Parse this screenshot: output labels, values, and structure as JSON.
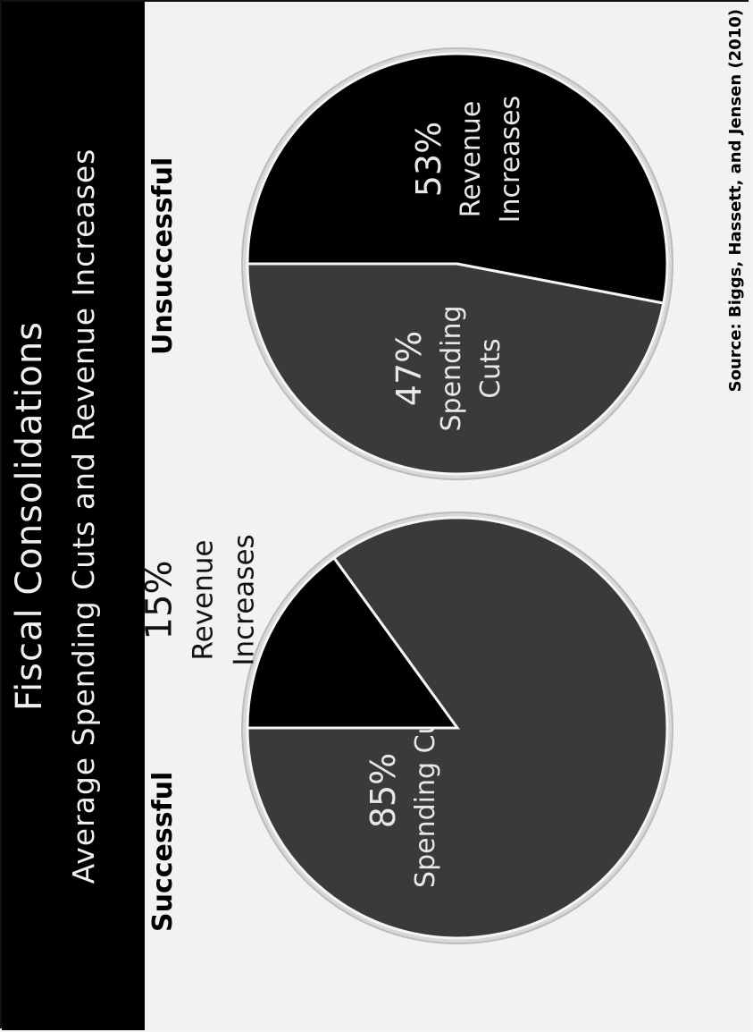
{
  "header": {
    "title": "Fiscal Consolidations",
    "subtitle": "Average Spending Cuts and Revenue Increases"
  },
  "source": "Source: Biggs, Hassett, and Jensen (2010)",
  "colors": {
    "spending_cuts": "#3a3a3a",
    "revenue_increases": "#000000",
    "slice_border": "#f5f5f5",
    "header_bg": "#000000"
  },
  "chart_data": [
    {
      "type": "pie",
      "title": "Successful",
      "slices": [
        {
          "value": 85,
          "pct_label": "85%",
          "name_label": "Spending Cuts",
          "name_lines": [
            "Spending Cuts"
          ],
          "label_placement": "inside",
          "color": "#3a3a3a"
        },
        {
          "value": 15,
          "pct_label": "15%",
          "name_label": "Revenue Increases",
          "name_lines": [
            "Revenue",
            "Increases"
          ],
          "label_placement": "outside",
          "color": "#000000"
        }
      ]
    },
    {
      "type": "pie",
      "title": "Unsuccessful",
      "slices": [
        {
          "value": 47,
          "pct_label": "47%",
          "name_label": "Spending Cuts",
          "name_lines": [
            "Spending",
            "Cuts"
          ],
          "label_placement": "inside",
          "color": "#3a3a3a"
        },
        {
          "value": 53,
          "pct_label": "53%",
          "name_label": "Revenue Increases",
          "name_lines": [
            "Revenue",
            "Increases"
          ],
          "label_placement": "inside",
          "color": "#000000"
        }
      ]
    }
  ]
}
